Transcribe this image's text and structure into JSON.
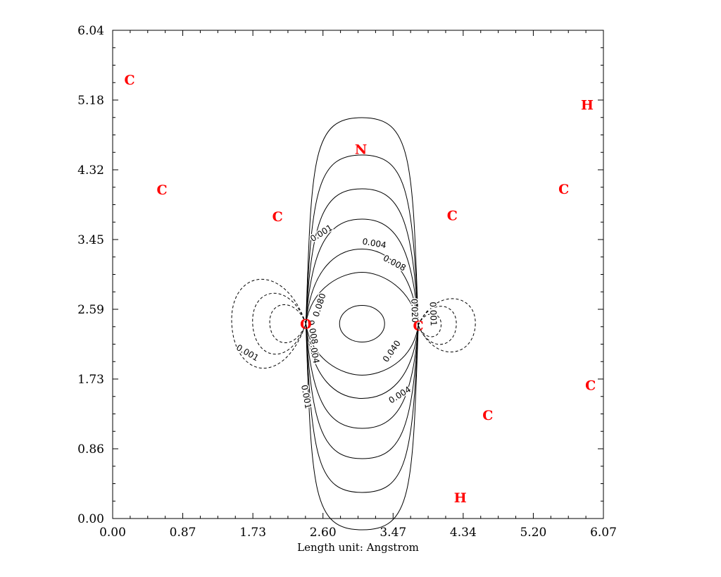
{
  "chart_data": {
    "type": "contour",
    "xlabel": "Length unit: Angstrom",
    "ylabel": "",
    "xlim": [
      0.0,
      6.07
    ],
    "ylim": [
      0.0,
      6.04
    ],
    "x_ticks": [
      "0.00",
      "0.87",
      "1.73",
      "2.60",
      "3.47",
      "4.34",
      "5.20",
      "6.07"
    ],
    "y_ticks": [
      "0.00",
      "0.86",
      "1.73",
      "2.59",
      "3.45",
      "4.32",
      "5.18",
      "6.04"
    ],
    "atom_color": "#ff0000",
    "atoms": [
      {
        "label": "C",
        "x": 0.21,
        "y": 5.43
      },
      {
        "label": "H",
        "x": 5.87,
        "y": 5.12
      },
      {
        "label": "N",
        "x": 3.07,
        "y": 4.57
      },
      {
        "label": "C",
        "x": 0.61,
        "y": 4.07
      },
      {
        "label": "C",
        "x": 5.58,
        "y": 4.08
      },
      {
        "label": "C",
        "x": 2.04,
        "y": 3.74
      },
      {
        "label": "C",
        "x": 4.2,
        "y": 3.75
      },
      {
        "label": "C",
        "x": 3.78,
        "y": 2.39
      },
      {
        "label": "O",
        "x": 2.39,
        "y": 2.41
      },
      {
        "label": "C",
        "x": 5.91,
        "y": 1.65
      },
      {
        "label": "C",
        "x": 4.64,
        "y": 1.28
      },
      {
        "label": "H",
        "x": 4.3,
        "y": 0.26
      }
    ],
    "contour_labels": [
      {
        "text": "0.001",
        "x": 2.6,
        "y": 3.5,
        "angle": -32
      },
      {
        "text": "0.004",
        "x": 3.23,
        "y": 3.37,
        "angle": 10
      },
      {
        "text": "0.008",
        "x": 3.47,
        "y": 3.13,
        "angle": 28
      },
      {
        "text": "0.080",
        "x": 2.59,
        "y": 2.63,
        "angle": -72
      },
      {
        "text": "0.020",
        "x": 3.7,
        "y": 2.57,
        "angle": 88
      },
      {
        "text": "0.001",
        "x": 3.93,
        "y": 2.53,
        "angle": 88
      },
      {
        "text": "0.040",
        "x": 3.48,
        "y": 2.05,
        "angle": -55
      },
      {
        "text": "0.004",
        "x": 3.57,
        "y": 1.5,
        "angle": -32
      },
      {
        "text": "0.001",
        "x": 1.65,
        "y": 2.02,
        "angle": 30
      },
      {
        "text": "0.001",
        "x": 2.36,
        "y": 1.5,
        "angle": 80
      },
      {
        "text": "0.004",
        "x": 2.46,
        "y": 2.06,
        "angle": 80
      },
      {
        "text": "0.008",
        "x": 2.44,
        "y": 2.3,
        "angle": 80
      }
    ]
  }
}
